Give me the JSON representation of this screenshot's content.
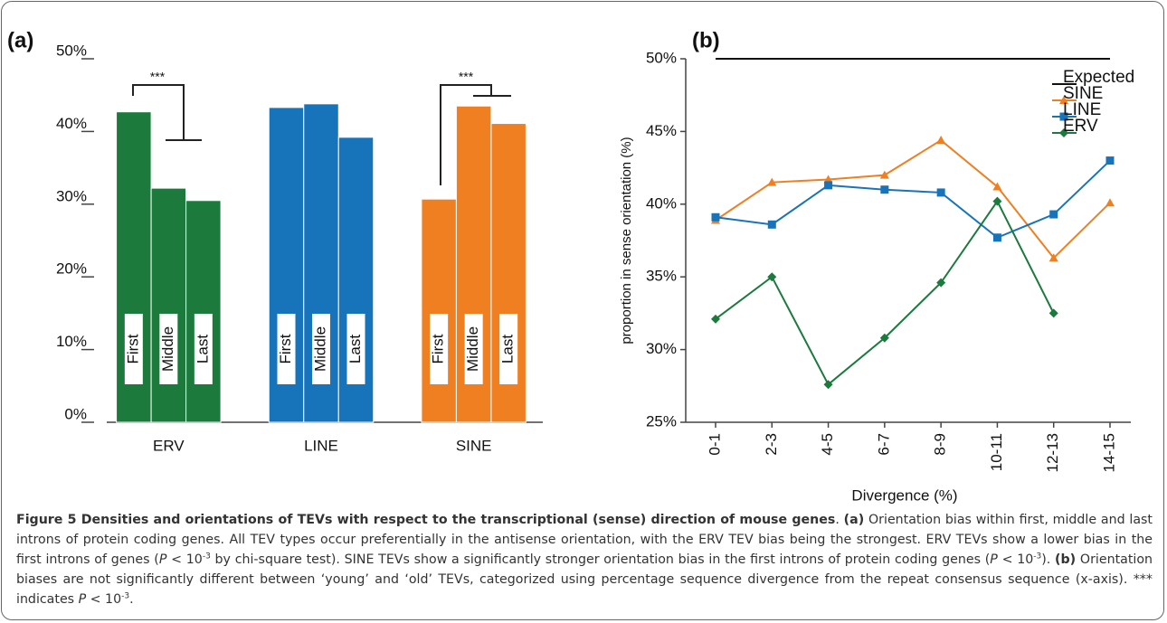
{
  "chart_data": [
    {
      "type": "bar",
      "panel": "(a)",
      "categories": [
        "ERV",
        "LINE",
        "SINE"
      ],
      "colors": [
        "#1b7a3c",
        "#1874ba",
        "#f07f22"
      ],
      "series": [
        {
          "name": "First",
          "values": [
            42.7,
            43.3,
            30.7
          ]
        },
        {
          "name": "Middle",
          "values": [
            32.2,
            43.8,
            43.5
          ]
        },
        {
          "name": "Last",
          "values": [
            30.5,
            39.2,
            41.1
          ]
        }
      ],
      "annotations": [
        "***",
        "***"
      ],
      "ylim": [
        0,
        50
      ],
      "yticks": [
        {
          "value": 0,
          "label": "0%"
        },
        {
          "value": 10,
          "label": "10%"
        },
        {
          "value": 20,
          "label": "20%"
        },
        {
          "value": 30,
          "label": "30%"
        },
        {
          "value": 40,
          "label": "40%"
        },
        {
          "value": 50,
          "label": "50%"
        }
      ]
    },
    {
      "type": "line",
      "panel": "(b)",
      "x_label": "Divergence (%)",
      "y_label": "proportion in sense orientation (%)",
      "categories": [
        "0-1",
        "2-3",
        "4-5",
        "6-7",
        "8-9",
        "10-11",
        "12-13",
        "14-15"
      ],
      "series": [
        {
          "name": "Expected",
          "color": "#111111",
          "values": [
            50,
            50,
            50,
            50,
            50,
            50,
            50,
            50
          ]
        },
        {
          "name": "SINE",
          "color": "#f07f22",
          "marker": "triangle",
          "values": [
            38.9,
            41.5,
            41.7,
            42.0,
            44.4,
            41.2,
            36.3,
            40.1
          ]
        },
        {
          "name": "LINE",
          "color": "#1874ba",
          "marker": "square",
          "values": [
            39.1,
            38.6,
            41.3,
            41.0,
            40.8,
            37.7,
            39.3,
            43.0
          ]
        },
        {
          "name": "ERV",
          "color": "#1b7a3c",
          "marker": "diamond",
          "values": [
            32.1,
            35.0,
            27.6,
            30.8,
            34.6,
            40.2,
            32.5,
            null
          ]
        }
      ],
      "ylim": [
        25,
        50
      ],
      "yticks": [
        {
          "value": 25,
          "label": "25%"
        },
        {
          "value": 30,
          "label": "30%"
        },
        {
          "value": 35,
          "label": "35%"
        },
        {
          "value": 40,
          "label": "40%"
        },
        {
          "value": 45,
          "label": "45%"
        },
        {
          "value": 50,
          "label": "50%"
        }
      ]
    }
  ],
  "caption": {
    "runs": [
      {
        "style": "bold",
        "text": "Figure 5 Densities and orientations of TEVs with respect to the transcriptional (sense) direction of mouse genes"
      },
      {
        "style": "normal",
        "text": ". "
      },
      {
        "style": "bold",
        "text": "(a)"
      },
      {
        "style": "normal",
        "text": " Orientation bias within first, middle and last introns of protein coding genes. All TEV types occur preferentially in the antisense orientation, with the ERV TEV bias being the strongest. ERV TEVs show a lower bias in the first introns of genes ("
      },
      {
        "style": "italic",
        "text": "P"
      },
      {
        "style": "normal",
        "text": " < 10"
      },
      {
        "style": "sup",
        "text": "-3"
      },
      {
        "style": "normal",
        "text": " by chi-square test). SINE TEVs show a significantly stronger orientation bias in the first introns of protein coding genes ("
      },
      {
        "style": "italic",
        "text": "P"
      },
      {
        "style": "normal",
        "text": " < 10"
      },
      {
        "style": "sup",
        "text": "-3"
      },
      {
        "style": "normal",
        "text": "). "
      },
      {
        "style": "bold",
        "text": "(b)"
      },
      {
        "style": "normal",
        "text": " Orientation biases are not significantly different between ‘young’ and ‘old’ TEVs, categorized using percentage sequence divergence from the repeat consensus sequence (x-axis). *** indicates "
      },
      {
        "style": "italic",
        "text": "P"
      },
      {
        "style": "normal",
        "text": " < 10"
      },
      {
        "style": "sup",
        "text": "-3"
      },
      {
        "style": "normal",
        "text": "."
      }
    ]
  }
}
